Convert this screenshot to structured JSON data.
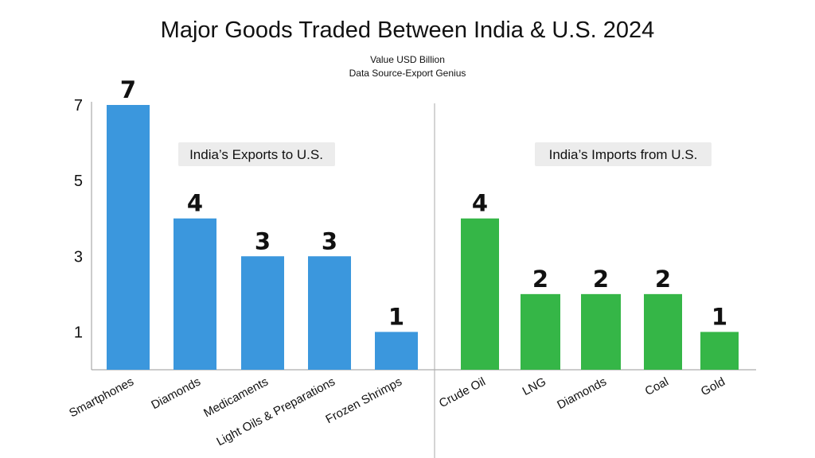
{
  "title": "Major Goods Traded Between India & U.S. 2024",
  "subtitle_lines": [
    "Value USD Billion",
    "Data Source-Export Genius"
  ],
  "chart_data": {
    "type": "bar",
    "title": "Major Goods Traded Between India & U.S. 2024",
    "subtitle": "Value USD Billion",
    "source": "Data Source-Export Genius",
    "yticks": [
      1,
      3,
      5,
      7
    ],
    "ylim": [
      0,
      7
    ],
    "grid": false,
    "panels": [
      {
        "name": "India’s Exports to U.S.",
        "color": "#3b97dd",
        "categories": [
          "Smartphones",
          "Diamonds",
          "Medicaments",
          "Light Oils & Preparations",
          "Frozen Shrimps"
        ],
        "values": [
          7,
          4,
          3,
          3,
          1
        ]
      },
      {
        "name": "India’s Imports from U.S.",
        "color": "#35b647",
        "categories": [
          "Crude Oil",
          "LNG",
          "Diamonds",
          "Coal",
          "Gold"
        ],
        "values": [
          4,
          2,
          2,
          2,
          1
        ]
      }
    ]
  }
}
